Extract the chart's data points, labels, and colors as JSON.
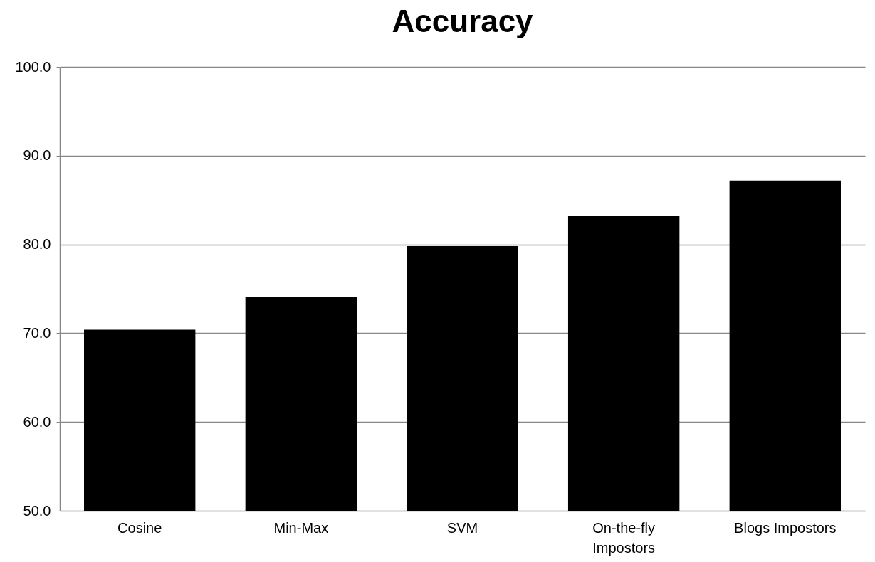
{
  "chart_data": {
    "type": "bar",
    "title": "Accuracy",
    "categories": [
      "Cosine",
      "Min-Max",
      "SVM",
      "On-the-fly Impostors",
      "Blogs Impostors"
    ],
    "values": [
      70.4,
      74.1,
      79.8,
      83.2,
      87.2
    ],
    "color": "#000000",
    "ylim": [
      50,
      100
    ],
    "yticks": [
      {
        "value": 50,
        "label": "50.0"
      },
      {
        "value": 60,
        "label": "60.0"
      },
      {
        "value": 70,
        "label": "70.0"
      },
      {
        "value": 80,
        "label": "80.0"
      },
      {
        "value": 90,
        "label": "90.0"
      },
      {
        "value": 100,
        "label": "100.0"
      }
    ],
    "grid": "y"
  }
}
